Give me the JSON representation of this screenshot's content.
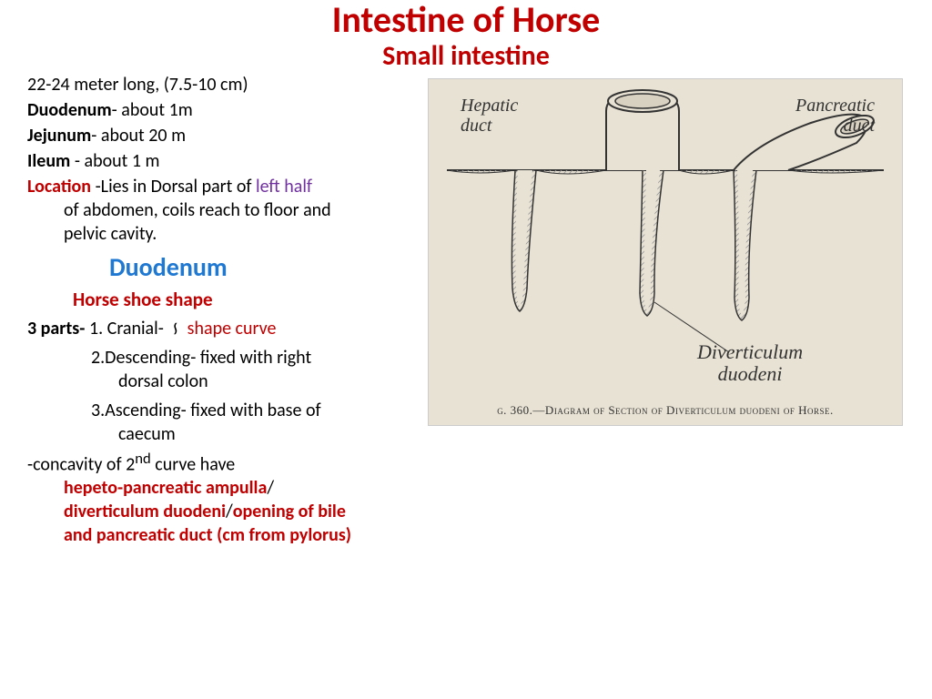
{
  "title": "Intestine of Horse",
  "subtitle": "Small intestine",
  "intro": {
    "length": "22-24 meter long, (7.5-10 cm)",
    "duodenum_label": "Duodenum",
    "duodenum_val": "- about 1m",
    "jejunum_label": "Jejunum",
    "jejunum_val": "- about 20 m",
    "ileum_label": "Ileum ",
    "ileum_val": "- about 1 m"
  },
  "location": {
    "label": "Location ",
    "text1": "-Lies in Dorsal part of ",
    "highlight": "left half",
    "text2": " of abdomen, coils reach to floor and pelvic cavity."
  },
  "duodenum": {
    "heading": "Duodenum",
    "shape": "Horse shoe shape",
    "parts_label": "3 parts-",
    "part1_a": " 1. Cranial- ",
    "part1_s": "∽",
    "part1_b": "  shape curve",
    "part2": "2.Descending-    fixed with right dorsal colon",
    "part3": "3.Ascending-     fixed with base of caecum",
    "concavity_a": "-concavity of 2",
    "concavity_sup": "nd",
    "concavity_b": " curve have ",
    "ampulla1": "hepeto-pancreatic ampulla",
    "slash": "/",
    "ampulla2": "diverticulum duodeni",
    "ampulla3": "opening of bile and pancreatic duct (cm from pylorus)"
  },
  "diagram": {
    "labels": {
      "hepatic": "Hepatic duct",
      "pancreatic": "Pancreatic duct",
      "diverticulum": "Diverticulum duodeni"
    },
    "caption": "g. 360.—Diagram of Section of Diverticulum duodeni of Horse.",
    "colors": {
      "bg": "#e8e2d4",
      "stroke": "#333333",
      "fill_dark": "#d0c8b8",
      "hatch": "#888"
    }
  }
}
